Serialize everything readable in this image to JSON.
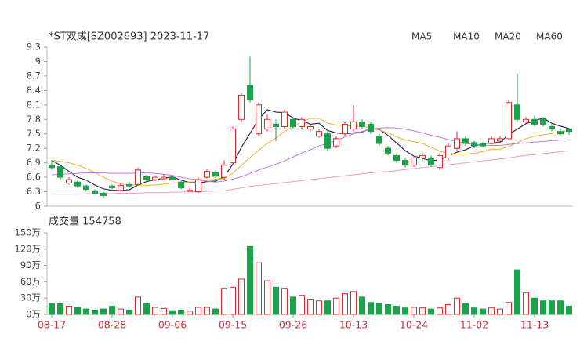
{
  "chart_data": [
    {
      "type": "candlestick",
      "title": "*ST双成[SZ002693] 2023-11-17",
      "up_color": "#e0282e",
      "down_color": "#1aa34a",
      "categories": [
        "08-17",
        null,
        null,
        null,
        null,
        null,
        null,
        "08-28",
        null,
        null,
        null,
        null,
        null,
        null,
        "09-06",
        null,
        null,
        null,
        null,
        null,
        null,
        "09-15",
        null,
        null,
        null,
        null,
        null,
        null,
        "09-26",
        null,
        null,
        null,
        null,
        null,
        null,
        "10-13",
        null,
        null,
        null,
        null,
        null,
        null,
        "10-24",
        null,
        null,
        null,
        null,
        null,
        null,
        "11-02",
        null,
        null,
        null,
        null,
        null,
        null,
        "11-13",
        null,
        null,
        null,
        null
      ],
      "open": [
        6.85,
        6.82,
        6.48,
        6.5,
        6.42,
        6.32,
        6.27,
        6.42,
        6.33,
        6.45,
        6.45,
        6.62,
        6.55,
        6.57,
        6.6,
        6.5,
        6.31,
        6.3,
        6.6,
        6.7,
        6.6,
        6.9,
        7.8,
        8.5,
        7.5,
        7.6,
        7.7,
        7.65,
        7.8,
        7.65,
        7.6,
        7.45,
        7.5,
        7.25,
        7.5,
        7.6,
        7.75,
        7.7,
        7.45,
        7.2,
        7.05,
        6.95,
        6.85,
        7.0,
        7.0,
        6.8,
        7.0,
        7.2,
        7.4,
        7.32,
        7.3,
        7.3,
        7.35,
        7.4,
        8.1,
        7.75,
        7.8,
        7.8,
        7.65,
        7.55,
        7.6
      ],
      "high": [
        6.95,
        6.85,
        6.6,
        6.55,
        6.45,
        6.35,
        6.3,
        6.45,
        6.47,
        6.5,
        6.8,
        6.65,
        6.64,
        6.66,
        6.63,
        6.52,
        6.37,
        6.6,
        6.76,
        6.74,
        6.95,
        7.65,
        8.35,
        9.1,
        8.15,
        7.9,
        7.8,
        8.0,
        7.85,
        7.85,
        7.7,
        7.6,
        7.55,
        7.45,
        7.75,
        8.1,
        7.8,
        7.75,
        7.5,
        7.25,
        7.1,
        7.0,
        7.05,
        7.1,
        7.05,
        7.1,
        7.3,
        7.55,
        7.45,
        7.36,
        7.33,
        7.45,
        7.45,
        8.2,
        8.75,
        7.85,
        7.88,
        7.85,
        7.7,
        7.6,
        7.62
      ],
      "low": [
        6.75,
        6.55,
        6.45,
        6.38,
        6.3,
        6.24,
        6.18,
        6.35,
        6.3,
        6.38,
        6.42,
        6.5,
        6.52,
        6.54,
        6.53,
        6.35,
        6.3,
        6.27,
        6.57,
        6.58,
        6.55,
        6.85,
        7.75,
        8.15,
        7.45,
        7.55,
        7.35,
        7.6,
        7.6,
        7.6,
        7.55,
        7.42,
        7.15,
        7.2,
        7.45,
        7.55,
        7.6,
        7.5,
        7.25,
        7.05,
        6.9,
        6.8,
        6.82,
        6.95,
        6.82,
        6.75,
        6.95,
        7.15,
        7.25,
        7.2,
        7.22,
        7.28,
        7.33,
        7.38,
        7.75,
        7.7,
        7.65,
        7.65,
        7.55,
        7.47,
        7.48
      ],
      "close": [
        6.8,
        6.6,
        6.55,
        6.42,
        6.35,
        6.27,
        6.22,
        6.38,
        6.43,
        6.42,
        6.75,
        6.55,
        6.6,
        6.6,
        6.56,
        6.38,
        6.33,
        6.55,
        6.72,
        6.62,
        6.85,
        7.6,
        8.3,
        8.2,
        8.1,
        7.8,
        7.65,
        7.95,
        7.65,
        7.8,
        7.65,
        7.55,
        7.2,
        7.4,
        7.7,
        7.75,
        7.65,
        7.55,
        7.3,
        7.1,
        6.95,
        6.85,
        7.0,
        7.05,
        6.85,
        7.05,
        7.25,
        7.4,
        7.3,
        7.25,
        7.25,
        7.4,
        7.4,
        8.15,
        7.8,
        7.8,
        7.7,
        7.7,
        7.6,
        7.5,
        7.55
      ],
      "series": [
        {
          "name": "MA5",
          "color": "#2b2b5e",
          "values": [
            6.95,
            6.85,
            6.72,
            6.6,
            6.54,
            6.44,
            6.36,
            6.33,
            6.33,
            6.34,
            6.44,
            6.51,
            6.55,
            6.58,
            6.61,
            6.54,
            6.49,
            6.48,
            6.51,
            6.52,
            6.61,
            6.87,
            7.22,
            7.51,
            7.8,
            8.0,
            7.95,
            7.94,
            7.83,
            7.77,
            7.7,
            7.72,
            7.57,
            7.52,
            7.5,
            7.52,
            7.54,
            7.61,
            7.59,
            7.47,
            7.31,
            7.15,
            7.04,
            6.99,
            6.94,
            6.96,
            7.04,
            7.12,
            7.17,
            7.25,
            7.29,
            7.32,
            7.32,
            7.49,
            7.6,
            7.71,
            7.77,
            7.83,
            7.72,
            7.66,
            7.61
          ]
        },
        {
          "name": "MA10",
          "color": "#f0b030",
          "values": [
            6.95,
            6.93,
            6.9,
            6.85,
            6.78,
            6.7,
            6.6,
            6.52,
            6.46,
            6.44,
            6.44,
            6.43,
            6.44,
            6.46,
            6.48,
            6.49,
            6.5,
            6.51,
            6.54,
            6.56,
            6.57,
            6.68,
            6.85,
            7.01,
            7.16,
            7.3,
            7.41,
            7.55,
            7.65,
            7.75,
            7.82,
            7.82,
            7.72,
            7.68,
            7.67,
            7.66,
            7.66,
            7.62,
            7.58,
            7.52,
            7.44,
            7.37,
            7.34,
            7.3,
            7.22,
            7.14,
            7.1,
            7.08,
            7.08,
            7.1,
            7.13,
            7.18,
            7.18,
            7.24,
            7.32,
            7.4,
            7.45,
            7.48,
            7.51,
            7.54,
            7.56
          ]
        },
        {
          "name": "MA20",
          "color": "#c078e0",
          "values": [
            6.65,
            6.66,
            6.67,
            6.68,
            6.69,
            6.69,
            6.69,
            6.68,
            6.68,
            6.68,
            6.69,
            6.69,
            6.68,
            6.66,
            6.64,
            6.6,
            6.57,
            6.55,
            6.52,
            6.5,
            6.52,
            6.56,
            6.61,
            6.68,
            6.75,
            6.81,
            6.87,
            6.94,
            7.02,
            7.1,
            7.17,
            7.25,
            7.3,
            7.37,
            7.43,
            7.5,
            7.55,
            7.6,
            7.62,
            7.63,
            7.62,
            7.6,
            7.56,
            7.52,
            7.47,
            7.43,
            7.38,
            7.34,
            7.3,
            7.28,
            7.27,
            7.26,
            7.26,
            7.28,
            7.3,
            7.31,
            7.33,
            7.34,
            7.36,
            7.37,
            7.38
          ]
        },
        {
          "name": "MA60",
          "color": "#f09ac0",
          "values": [
            6.25,
            6.25,
            6.25,
            6.25,
            6.26,
            6.26,
            6.26,
            6.26,
            6.27,
            6.27,
            6.27,
            6.28,
            6.28,
            6.28,
            6.29,
            6.29,
            6.3,
            6.3,
            6.31,
            6.31,
            6.32,
            6.35,
            6.38,
            6.41,
            6.43,
            6.45,
            6.47,
            6.49,
            6.51,
            6.53,
            6.55,
            6.57,
            6.59,
            6.61,
            6.63,
            6.65,
            6.67,
            6.69,
            6.71,
            6.72,
            6.74,
            6.76,
            6.78,
            6.8,
            6.82,
            6.84,
            6.86,
            6.88,
            6.9,
            6.92,
            6.94,
            6.96,
            6.98,
            7.0,
            7.03,
            7.05,
            7.07,
            7.09,
            7.11,
            7.13,
            7.15
          ]
        }
      ],
      "ylim": [
        6,
        9.3
      ],
      "yticks": [
        {
          "value": 9.3,
          "label": "9.3"
        },
        9,
        8.7,
        8.4,
        8.1,
        7.8,
        7.5,
        7.2,
        6.9,
        6.6,
        6.3,
        6
      ]
    },
    {
      "type": "bar",
      "title": "成交量 154758",
      "values": [
        20,
        20,
        15,
        13,
        10,
        8,
        10,
        15,
        10,
        8,
        32,
        20,
        13,
        11,
        7,
        8,
        6,
        13,
        13,
        10,
        48,
        50,
        65,
        125,
        95,
        62,
        50,
        48,
        32,
        35,
        28,
        25,
        25,
        30,
        38,
        42,
        32,
        22,
        20,
        18,
        15,
        12,
        13,
        12,
        10,
        12,
        18,
        30,
        20,
        12,
        10,
        12,
        10,
        22,
        82,
        40,
        30,
        25,
        25,
        25,
        15
      ],
      "ylim": [
        0,
        150
      ],
      "yticks": [
        {
          "value": 150,
          "label": "150万"
        },
        {
          "value": 120,
          "label": "120万"
        },
        {
          "value": 90,
          "label": "90万"
        },
        {
          "value": 60,
          "label": "60万"
        },
        {
          "value": 30,
          "label": "30万"
        },
        {
          "value": 0,
          "label": "0万"
        }
      ]
    }
  ]
}
